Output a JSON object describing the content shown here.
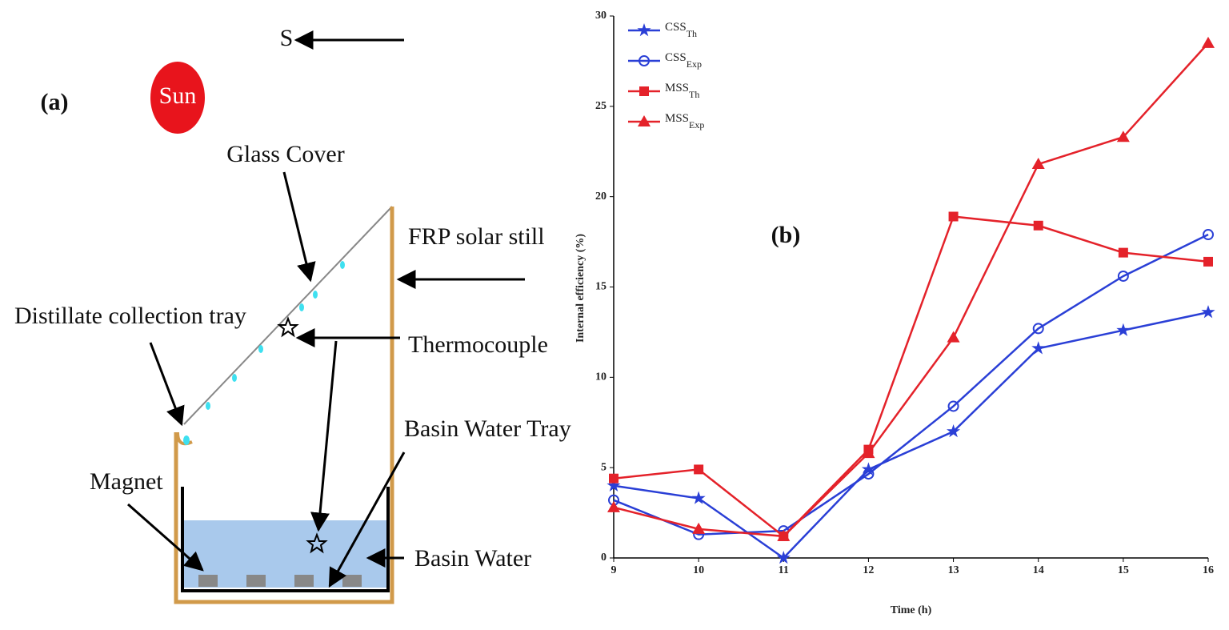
{
  "diagram": {
    "panel_label": "(a)",
    "sun": "Sun",
    "direction": "S",
    "labels": [
      "Glass Cover",
      "FRP solar still",
      "Distillate collection tray",
      "Thermocouple",
      "Basin Water Tray",
      "Magnet",
      "Basin Water"
    ]
  },
  "chart_data": {
    "type": "line",
    "annotation": "(b)",
    "x_label": "Time (h)",
    "y_label": "Internal efficiency (%)",
    "x": [
      9,
      10,
      11,
      12,
      13,
      14,
      15,
      16
    ],
    "xlim": [
      9,
      16
    ],
    "xticks": [
      9,
      10,
      11,
      12,
      13,
      14,
      15,
      16
    ],
    "ylim": [
      0,
      30
    ],
    "yticks": [
      0,
      5,
      10,
      15,
      20,
      25,
      30
    ],
    "legend": "upper left",
    "series": [
      {
        "name": "CSS",
        "subscript": "Th",
        "color": "#2a3fd6",
        "marker": "star",
        "values": [
          4.0,
          3.3,
          0.0,
          4.9,
          7.0,
          11.6,
          12.6,
          13.6
        ]
      },
      {
        "name": "CSS",
        "subscript": "Exp",
        "color": "#2a3fd6",
        "marker": "circle",
        "values": [
          3.2,
          1.3,
          1.5,
          4.65,
          8.4,
          12.7,
          15.6,
          17.9
        ]
      },
      {
        "name": "MSS",
        "subscript": "Th",
        "color": "#e4222a",
        "marker": "square",
        "values": [
          4.4,
          4.9,
          1.2,
          6.0,
          18.9,
          18.4,
          16.9,
          16.4
        ]
      },
      {
        "name": "MSS",
        "subscript": "Exp",
        "color": "#e4222a",
        "marker": "triangle",
        "values": [
          2.8,
          1.6,
          1.2,
          5.8,
          12.2,
          21.8,
          23.3,
          28.5
        ]
      }
    ]
  }
}
